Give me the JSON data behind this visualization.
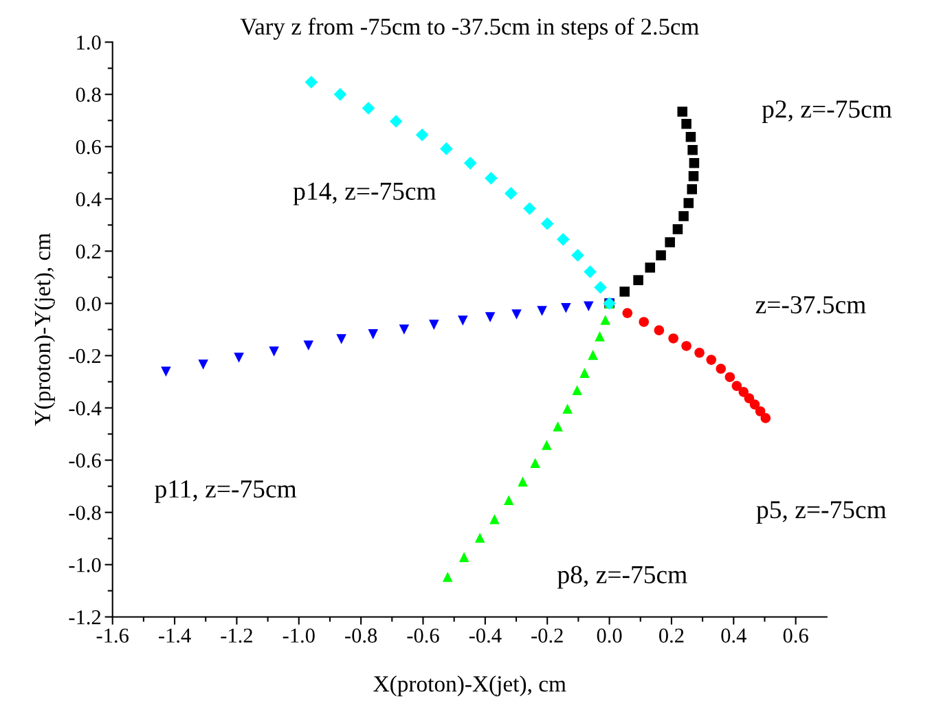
{
  "chart_data": {
    "type": "scatter",
    "title": "Vary z from -75cm to -37.5cm in steps of 2.5cm",
    "xlabel": "X(proton)-X(jet), cm",
    "ylabel": "Y(proton)-Y(jet), cm",
    "xlim": [
      -1.6,
      0.7
    ],
    "ylim": [
      -1.2,
      1.0
    ],
    "grid": false,
    "legend": false,
    "xticks": [
      {
        "value": -1.6,
        "label": "-1.6"
      },
      {
        "value": -1.5,
        "label": null
      },
      {
        "value": -1.4,
        "label": "-1.4"
      },
      {
        "value": -1.3,
        "label": null
      },
      {
        "value": -1.2,
        "label": "-1.2"
      },
      {
        "value": -1.1,
        "label": null
      },
      {
        "value": -1.0,
        "label": "-1.0"
      },
      {
        "value": -0.9,
        "label": null
      },
      {
        "value": -0.8,
        "label": "-0.8"
      },
      {
        "value": -0.7,
        "label": null
      },
      {
        "value": -0.6,
        "label": "-0.6"
      },
      {
        "value": -0.5,
        "label": null
      },
      {
        "value": -0.4,
        "label": "-0.4"
      },
      {
        "value": -0.3,
        "label": null
      },
      {
        "value": -0.2,
        "label": "-0.2"
      },
      {
        "value": -0.1,
        "label": null
      },
      {
        "value": 0.0,
        "label": "0.0"
      },
      {
        "value": 0.1,
        "label": null
      },
      {
        "value": 0.2,
        "label": "0.2"
      },
      {
        "value": 0.3,
        "label": null
      },
      {
        "value": 0.4,
        "label": "0.4"
      },
      {
        "value": 0.5,
        "label": null
      },
      {
        "value": 0.6,
        "label": "0.6"
      }
    ],
    "yticks": [
      {
        "value": -1.2,
        "label": "-1.2"
      },
      {
        "value": -1.1,
        "label": null
      },
      {
        "value": -1.0,
        "label": "-1.0"
      },
      {
        "value": -0.9,
        "label": null
      },
      {
        "value": -0.8,
        "label": "-0.8"
      },
      {
        "value": -0.7,
        "label": null
      },
      {
        "value": -0.6,
        "label": "-0.6"
      },
      {
        "value": -0.5,
        "label": null
      },
      {
        "value": -0.4,
        "label": "-0.4"
      },
      {
        "value": -0.3,
        "label": null
      },
      {
        "value": -0.2,
        "label": "-0.2"
      },
      {
        "value": -0.1,
        "label": null
      },
      {
        "value": 0.0,
        "label": "0.0"
      },
      {
        "value": 0.1,
        "label": null
      },
      {
        "value": 0.2,
        "label": "0.2"
      },
      {
        "value": 0.3,
        "label": null
      },
      {
        "value": 0.4,
        "label": "0.4"
      },
      {
        "value": 0.5,
        "label": null
      },
      {
        "value": 0.6,
        "label": "0.6"
      },
      {
        "value": 0.7,
        "label": null
      },
      {
        "value": 0.8,
        "label": "0.8"
      },
      {
        "value": 0.9,
        "label": null
      },
      {
        "value": 1.0,
        "label": "1.0"
      }
    ],
    "series": [
      {
        "color": "#000000",
        "marker": "square",
        "x": [
          0.235,
          0.248,
          0.262,
          0.268,
          0.273,
          0.271,
          0.266,
          0.255,
          0.239,
          0.22,
          0.195,
          0.166,
          0.131,
          0.093,
          0.049,
          0.0
        ],
        "values": [
          0.734,
          0.687,
          0.637,
          0.587,
          0.537,
          0.487,
          0.437,
          0.384,
          0.334,
          0.284,
          0.234,
          0.184,
          0.137,
          0.089,
          0.045,
          0.0
        ]
      },
      {
        "color": "#ff0000",
        "marker": "circle",
        "x": [
          0.503,
          0.486,
          0.468,
          0.45,
          0.432,
          0.41,
          0.388,
          0.359,
          0.328,
          0.29,
          0.248,
          0.206,
          0.16,
          0.111,
          0.058,
          0.0
        ],
        "values": [
          -0.439,
          -0.413,
          -0.387,
          -0.363,
          -0.339,
          -0.316,
          -0.282,
          -0.25,
          -0.216,
          -0.189,
          -0.163,
          -0.134,
          -0.103,
          -0.071,
          -0.037,
          0.0
        ]
      },
      {
        "color": "#00ff00",
        "marker": "triangle",
        "x": [
          -0.521,
          -0.468,
          -0.417,
          -0.37,
          -0.324,
          -0.279,
          -0.239,
          -0.202,
          -0.166,
          -0.135,
          -0.104,
          -0.08,
          -0.053,
          -0.031,
          -0.013,
          0.0
        ],
        "values": [
          -1.047,
          -0.971,
          -0.897,
          -0.826,
          -0.753,
          -0.682,
          -0.611,
          -0.542,
          -0.471,
          -0.403,
          -0.332,
          -0.266,
          -0.197,
          -0.126,
          -0.063,
          0.0
        ]
      },
      {
        "color": "#0000ff",
        "marker": "triangle_down",
        "x": [
          -1.428,
          -1.308,
          -1.193,
          -1.08,
          -0.969,
          -0.863,
          -0.761,
          -0.661,
          -0.565,
          -0.472,
          -0.384,
          -0.299,
          -0.217,
          -0.14,
          -0.067,
          0.0
        ],
        "values": [
          -0.261,
          -0.234,
          -0.208,
          -0.184,
          -0.161,
          -0.137,
          -0.118,
          -0.1,
          -0.082,
          -0.066,
          -0.053,
          -0.042,
          -0.029,
          -0.018,
          -0.011,
          0.0
        ]
      },
      {
        "color": "#00ffff",
        "marker": "diamond",
        "x": [
          -0.96,
          -0.867,
          -0.776,
          -0.687,
          -0.603,
          -0.525,
          -0.448,
          -0.381,
          -0.317,
          -0.257,
          -0.2,
          -0.149,
          -0.102,
          -0.062,
          -0.029,
          0.0
        ],
        "values": [
          0.847,
          0.8,
          0.747,
          0.697,
          0.645,
          0.592,
          0.537,
          0.479,
          0.421,
          0.363,
          0.305,
          0.245,
          0.184,
          0.121,
          0.061,
          0.0
        ]
      }
    ],
    "annotations": [
      "p2, z=-75cm",
      "z=-37.5cm",
      "p5, z=-75cm",
      "p8, z=-75cm",
      "p11, z=-75cm",
      "p14, z=-75cm"
    ]
  }
}
